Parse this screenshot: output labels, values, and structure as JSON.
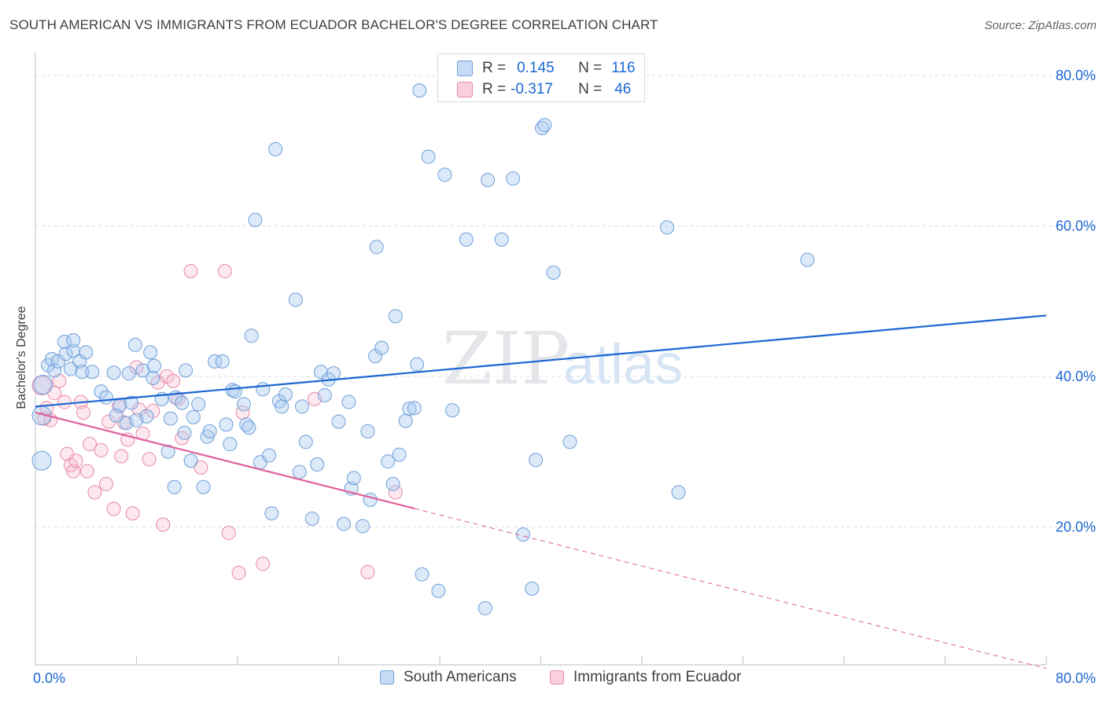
{
  "header": {
    "title": "SOUTH AMERICAN VS IMMIGRANTS FROM ECUADOR BACHELOR'S DEGREE CORRELATION CHART",
    "source": "Source: ZipAtlas.com"
  },
  "watermark": {
    "zip": "ZIP",
    "atlas": "atlas"
  },
  "stats_legend": {
    "rows": [
      {
        "r_label": "R =",
        "r_value": "0.145",
        "n_label": "N =",
        "n_value": "116"
      },
      {
        "r_label": "R =",
        "r_value": "-0.317",
        "n_label": "N =",
        "n_value": "46"
      }
    ]
  },
  "bottom_legend": {
    "items": [
      {
        "label": "South Americans"
      },
      {
        "label": "Immigrants from Ecuador"
      }
    ]
  },
  "colors": {
    "blue_fill": "#a8c8f0",
    "blue_stroke": "#6f9fd8",
    "blue_line": "#1a66d2",
    "pink_fill": "#f6bccd",
    "pink_stroke": "#e88aa8",
    "pink_line": "#e0609a",
    "grid": "#dadce0",
    "axis_tick_text": "#1a66d2"
  },
  "chart_data": {
    "type": "scatter",
    "title": "SOUTH AMERICAN VS IMMIGRANTS FROM ECUADOR BACHELOR'S DEGREE CORRELATION CHART",
    "xlabel": "",
    "ylabel": "Bachelor's Degree",
    "xlim": [
      0,
      80
    ],
    "ylim": [
      0,
      80
    ],
    "x_tick_labels": [
      "0.0%",
      "80.0%"
    ],
    "y_tick_labels": [
      "20.0%",
      "40.0%",
      "60.0%",
      "80.0%"
    ],
    "y_ticks": [
      20,
      40,
      60,
      80
    ],
    "grid": true,
    "legend_position": "bottom",
    "series": [
      {
        "name": "South Americans",
        "color": "#a8c8f0",
        "trend": {
          "x": [
            0,
            80
          ],
          "y": [
            36.0,
            48.1
          ]
        },
        "points": [
          [
            0.5,
            28.8
          ],
          [
            0.5,
            34.8
          ],
          [
            0.6,
            38.9
          ],
          [
            1.0,
            41.5
          ],
          [
            1.3,
            42.3
          ],
          [
            1.5,
            40.8
          ],
          [
            1.8,
            42.0
          ],
          [
            2.3,
            44.6
          ],
          [
            2.4,
            43.0
          ],
          [
            2.8,
            41.0
          ],
          [
            3.0,
            43.4
          ],
          [
            3.0,
            44.8
          ],
          [
            3.5,
            42.0
          ],
          [
            3.7,
            40.6
          ],
          [
            4.0,
            43.2
          ],
          [
            4.5,
            40.6
          ],
          [
            5.2,
            38.0
          ],
          [
            5.6,
            37.2
          ],
          [
            6.2,
            40.5
          ],
          [
            6.4,
            34.8
          ],
          [
            6.7,
            36.2
          ],
          [
            7.2,
            33.8
          ],
          [
            7.4,
            40.4
          ],
          [
            7.6,
            36.5
          ],
          [
            7.9,
            44.2
          ],
          [
            8.0,
            34.2
          ],
          [
            8.5,
            40.8
          ],
          [
            8.8,
            34.7
          ],
          [
            9.1,
            43.2
          ],
          [
            9.3,
            39.8
          ],
          [
            9.4,
            41.4
          ],
          [
            10.0,
            37.0
          ],
          [
            10.5,
            30.0
          ],
          [
            10.7,
            34.4
          ],
          [
            11.0,
            25.3
          ],
          [
            11.1,
            37.2
          ],
          [
            11.6,
            36.5
          ],
          [
            11.8,
            32.5
          ],
          [
            11.9,
            40.8
          ],
          [
            12.3,
            28.8
          ],
          [
            12.5,
            34.6
          ],
          [
            12.9,
            36.3
          ],
          [
            13.3,
            25.3
          ],
          [
            13.6,
            32.0
          ],
          [
            13.8,
            32.7
          ],
          [
            14.2,
            42.0
          ],
          [
            14.8,
            42.0
          ],
          [
            15.1,
            33.6
          ],
          [
            15.4,
            31.0
          ],
          [
            15.6,
            38.2
          ],
          [
            15.8,
            38.0
          ],
          [
            16.5,
            36.3
          ],
          [
            16.7,
            33.6
          ],
          [
            16.9,
            33.2
          ],
          [
            17.1,
            45.4
          ],
          [
            17.4,
            60.8
          ],
          [
            17.8,
            28.6
          ],
          [
            18.0,
            38.3
          ],
          [
            18.5,
            29.5
          ],
          [
            18.7,
            21.8
          ],
          [
            19.0,
            70.2
          ],
          [
            19.3,
            36.7
          ],
          [
            19.5,
            36.0
          ],
          [
            19.8,
            37.6
          ],
          [
            20.6,
            50.2
          ],
          [
            20.9,
            27.3
          ],
          [
            21.1,
            36.0
          ],
          [
            21.4,
            31.3
          ],
          [
            21.9,
            21.1
          ],
          [
            22.3,
            28.3
          ],
          [
            22.6,
            40.6
          ],
          [
            22.9,
            37.5
          ],
          [
            23.2,
            39.6
          ],
          [
            23.6,
            40.4
          ],
          [
            24.0,
            34.0
          ],
          [
            24.4,
            20.4
          ],
          [
            24.8,
            36.6
          ],
          [
            25.0,
            25.1
          ],
          [
            25.2,
            26.5
          ],
          [
            25.9,
            20.1
          ],
          [
            26.3,
            32.7
          ],
          [
            26.5,
            23.6
          ],
          [
            26.9,
            42.7
          ],
          [
            27.0,
            57.2
          ],
          [
            27.4,
            43.8
          ],
          [
            27.9,
            28.7
          ],
          [
            28.3,
            25.7
          ],
          [
            28.5,
            48.0
          ],
          [
            28.8,
            29.6
          ],
          [
            29.3,
            34.1
          ],
          [
            29.6,
            35.7
          ],
          [
            30.0,
            35.8
          ],
          [
            30.2,
            41.6
          ],
          [
            30.4,
            78.0
          ],
          [
            30.6,
            13.7
          ],
          [
            31.1,
            69.2
          ],
          [
            31.9,
            11.5
          ],
          [
            32.4,
            66.8
          ],
          [
            33.0,
            35.5
          ],
          [
            34.1,
            58.2
          ],
          [
            35.6,
            9.2
          ],
          [
            35.8,
            66.1
          ],
          [
            36.9,
            58.2
          ],
          [
            37.8,
            66.3
          ],
          [
            38.6,
            19.0
          ],
          [
            39.3,
            11.8
          ],
          [
            39.6,
            28.9
          ],
          [
            40.1,
            73.0
          ],
          [
            40.3,
            73.4
          ],
          [
            41.0,
            53.8
          ],
          [
            42.3,
            31.3
          ],
          [
            50.0,
            59.8
          ],
          [
            50.9,
            24.6
          ],
          [
            61.1,
            55.5
          ]
        ]
      },
      {
        "name": "Immigrants from Ecuador",
        "color": "#f6bccd",
        "trend": {
          "x": [
            0,
            80
          ],
          "y": [
            35.2,
            1.2
          ],
          "solid_until_x": 30.0
        },
        "points": [
          [
            0.5,
            38.8
          ],
          [
            0.7,
            34.4
          ],
          [
            0.9,
            35.8
          ],
          [
            1.2,
            34.2
          ],
          [
            1.5,
            37.8
          ],
          [
            1.9,
            39.4
          ],
          [
            2.3,
            36.6
          ],
          [
            2.5,
            29.7
          ],
          [
            2.8,
            28.2
          ],
          [
            3.0,
            27.4
          ],
          [
            3.2,
            28.8
          ],
          [
            3.6,
            36.6
          ],
          [
            3.8,
            35.2
          ],
          [
            4.1,
            27.4
          ],
          [
            4.3,
            31.0
          ],
          [
            4.7,
            24.6
          ],
          [
            5.2,
            30.2
          ],
          [
            5.6,
            25.7
          ],
          [
            5.8,
            34.0
          ],
          [
            6.2,
            22.4
          ],
          [
            6.6,
            36.0
          ],
          [
            6.8,
            29.4
          ],
          [
            7.0,
            33.9
          ],
          [
            7.3,
            31.6
          ],
          [
            7.7,
            21.8
          ],
          [
            8.0,
            41.2
          ],
          [
            8.2,
            35.6
          ],
          [
            8.5,
            32.4
          ],
          [
            9.0,
            29.0
          ],
          [
            9.3,
            35.4
          ],
          [
            9.7,
            39.2
          ],
          [
            10.1,
            20.3
          ],
          [
            10.4,
            40.0
          ],
          [
            10.9,
            39.4
          ],
          [
            11.3,
            37.0
          ],
          [
            11.6,
            31.8
          ],
          [
            12.3,
            54.0
          ],
          [
            13.1,
            27.9
          ],
          [
            15.0,
            54.0
          ],
          [
            15.3,
            19.2
          ],
          [
            16.1,
            13.9
          ],
          [
            16.4,
            35.2
          ],
          [
            18.0,
            15.1
          ],
          [
            22.1,
            37.0
          ],
          [
            26.3,
            14.0
          ],
          [
            28.5,
            24.6
          ]
        ]
      }
    ]
  }
}
